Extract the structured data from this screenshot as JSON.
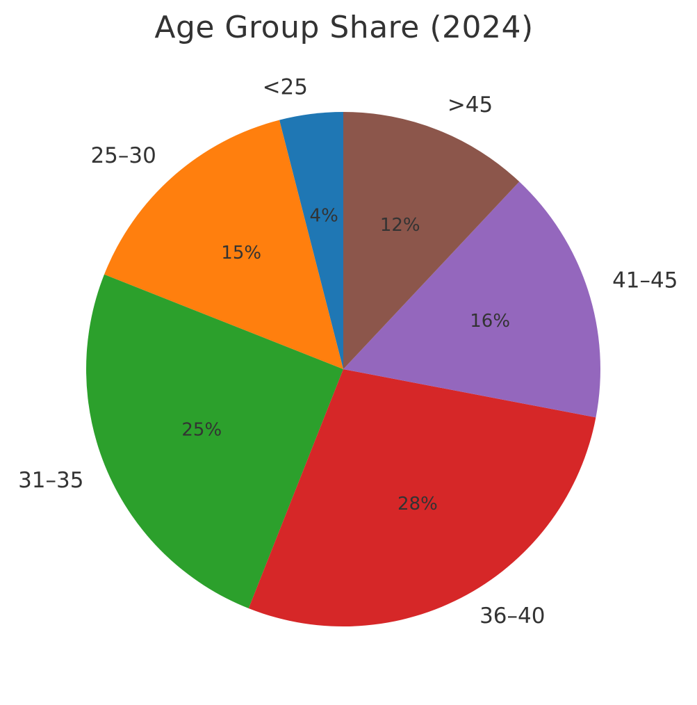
{
  "chart_data": {
    "type": "pie",
    "title": "Age Group Share (2024)",
    "categories": [
      "<25",
      "25–30",
      "31–35",
      "36–40",
      "41–45",
      ">45"
    ],
    "values": [
      4,
      15,
      25,
      28,
      16,
      12
    ],
    "percent_labels": [
      "4%",
      "15%",
      "25%",
      "28%",
      "16%",
      "12%"
    ],
    "colors": [
      "#1f77b4",
      "#ff7f0e",
      "#2ca02c",
      "#d62728",
      "#9467bd",
      "#8c564b"
    ],
    "start_angle": "top",
    "direction": "counterclockwise"
  }
}
